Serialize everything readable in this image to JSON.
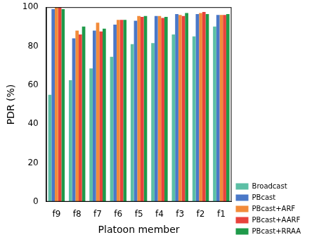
{
  "chart_data": {
    "type": "bar",
    "x_label": "Platoon member",
    "y_label": "PDR (%)",
    "categories": [
      "f9",
      "f8",
      "f7",
      "f6",
      "f5",
      "f4",
      "f3",
      "f2",
      "f1"
    ],
    "series": [
      {
        "name": "Broadcast",
        "color": "#5cbfa5",
        "values": [
          55,
          62.5,
          68.5,
          74.5,
          81,
          81.5,
          86,
          85,
          90
        ]
      },
      {
        "name": "PBcast",
        "color": "#4a78c8",
        "values": [
          99,
          84,
          88,
          91,
          93,
          95.5,
          96.5,
          96.5,
          96
        ]
      },
      {
        "name": "PBcast+ARF",
        "color": "#f28b3a",
        "values": [
          100,
          88,
          92,
          93.5,
          95.5,
          95.5,
          96,
          97,
          96
        ]
      },
      {
        "name": "PBcast+AARF",
        "color": "#e8423c",
        "values": [
          100,
          86,
          87.5,
          93.5,
          95,
          94.5,
          95.5,
          97.5,
          96
        ]
      },
      {
        "name": "PBcast+RRAA",
        "color": "#1f9a4a",
        "values": [
          99,
          90,
          89,
          93.5,
          95.5,
          95,
          97,
          96.5,
          96.5
        ]
      }
    ],
    "ylim": [
      0,
      100
    ],
    "yticks": [
      0,
      20,
      40,
      60,
      80,
      100
    ],
    "grid": false,
    "legend": "right"
  }
}
